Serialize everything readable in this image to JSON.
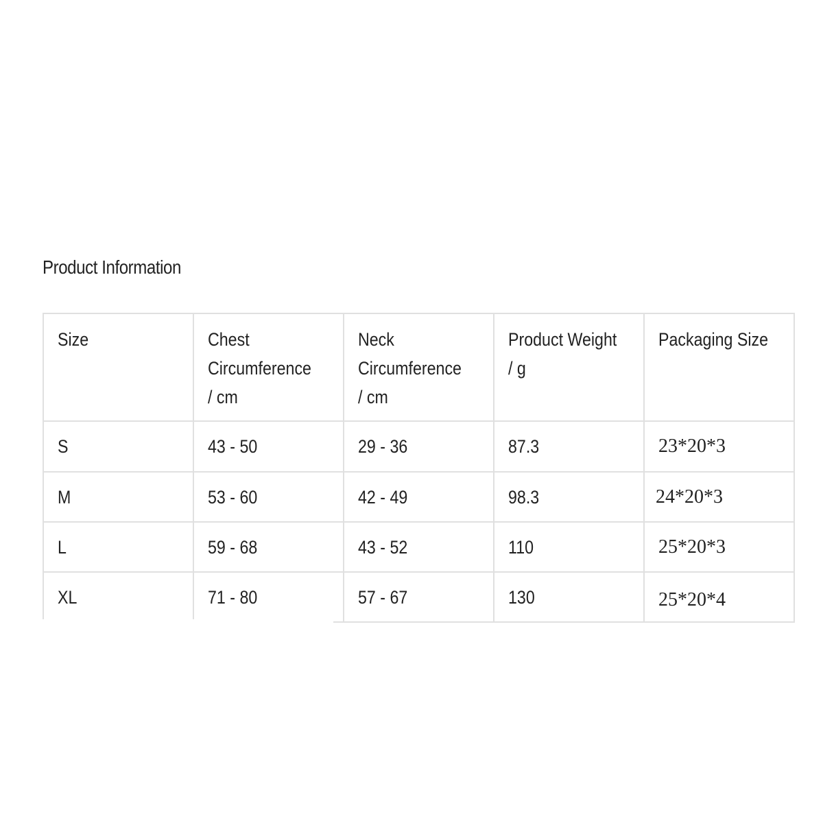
{
  "title": "Product Information",
  "table": {
    "headers": [
      [
        "Size"
      ],
      [
        "Chest",
        "Circumference",
        "/ cm"
      ],
      [
        "Neck",
        "Circumference",
        "/ cm"
      ],
      [
        "Product Weight",
        " / g"
      ],
      [
        "Packaging Size"
      ]
    ],
    "rows": [
      [
        "S",
        "43 - 50",
        "29 - 36",
        "87.3",
        "23*20*3"
      ],
      [
        "M",
        "53 - 60",
        "42 - 49",
        "98.3",
        "24*20*3"
      ],
      [
        "L",
        "59 - 68",
        "43 - 52",
        "110",
        "25*20*3"
      ],
      [
        "XL",
        "71 - 80",
        "57 - 67",
        "130",
        "25*20*4"
      ]
    ]
  }
}
